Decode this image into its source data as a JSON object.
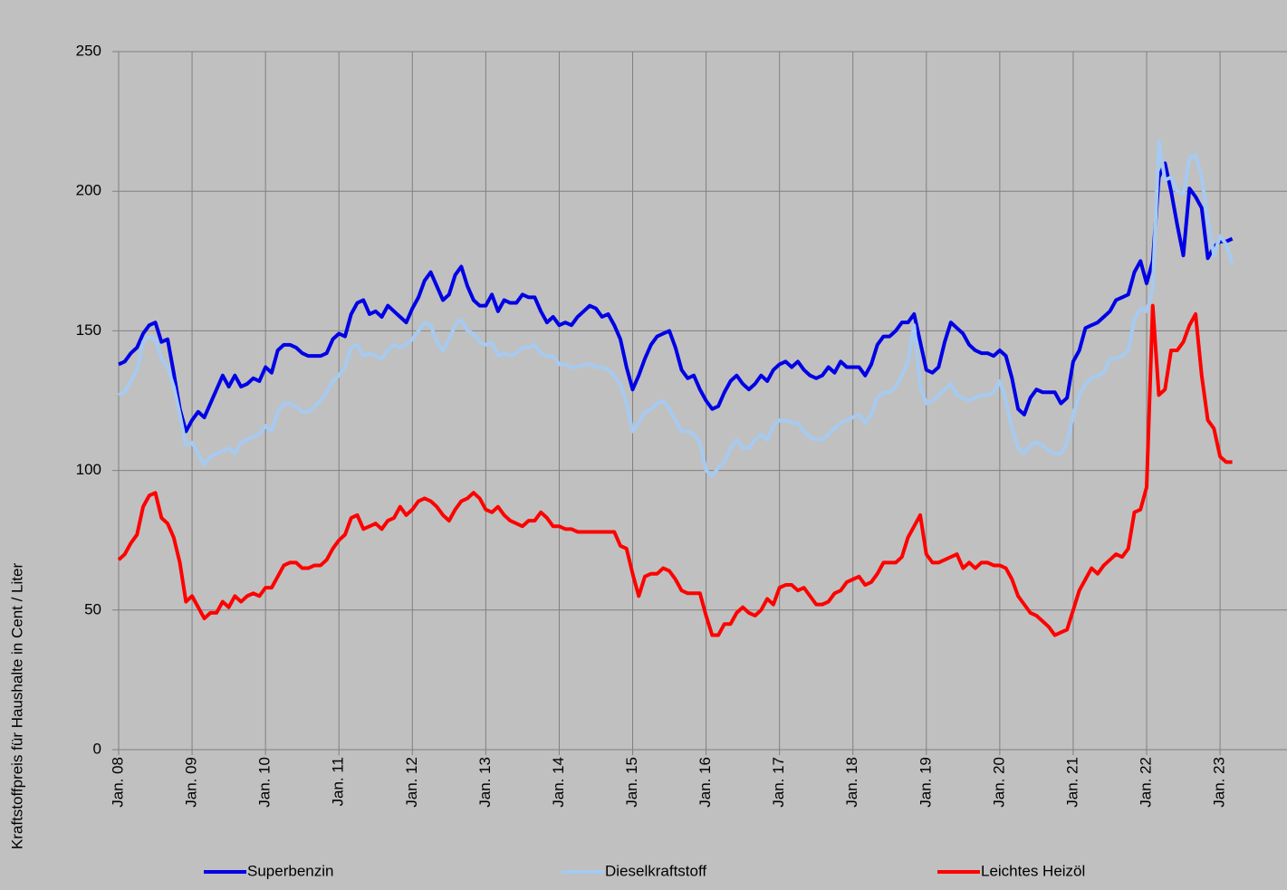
{
  "chart_data": {
    "type": "line",
    "y_label": "Kraftstoffpreis für Haushalte in Cent / Liter",
    "categories": [
      "Jan. 08",
      null,
      null,
      null,
      null,
      null,
      null,
      null,
      null,
      null,
      null,
      null,
      "Jan. 09",
      null,
      null,
      null,
      null,
      null,
      null,
      null,
      null,
      null,
      null,
      null,
      "Jan. 10",
      null,
      null,
      null,
      null,
      null,
      null,
      null,
      null,
      null,
      null,
      null,
      "Jan. 11",
      null,
      null,
      null,
      null,
      null,
      null,
      null,
      null,
      null,
      null,
      null,
      "Jan. 12",
      null,
      null,
      null,
      null,
      null,
      null,
      null,
      null,
      null,
      null,
      null,
      "Jan. 13",
      null,
      null,
      null,
      null,
      null,
      null,
      null,
      null,
      null,
      null,
      null,
      "Jan. 14",
      null,
      null,
      null,
      null,
      null,
      null,
      null,
      null,
      null,
      null,
      null,
      "Jan. 15",
      null,
      null,
      null,
      null,
      null,
      null,
      null,
      null,
      null,
      null,
      null,
      "Jan. 16",
      null,
      null,
      null,
      null,
      null,
      null,
      null,
      null,
      null,
      null,
      null,
      "Jan. 17",
      null,
      null,
      null,
      null,
      null,
      null,
      null,
      null,
      null,
      null,
      null,
      "Jan. 18",
      null,
      null,
      null,
      null,
      null,
      null,
      null,
      null,
      null,
      null,
      null,
      "Jan. 19",
      null,
      null,
      null,
      null,
      null,
      null,
      null,
      null,
      null,
      null,
      null,
      "Jan. 20",
      null,
      null,
      null,
      null,
      null,
      null,
      null,
      null,
      null,
      null,
      null,
      "Jan. 21",
      null,
      null,
      null,
      null,
      null,
      null,
      null,
      null,
      null,
      null,
      null,
      "Jan. 22",
      null,
      null,
      null,
      null,
      null,
      null,
      null,
      null,
      null,
      null,
      null,
      "Jan. 23",
      null,
      null
    ],
    "series": [
      {
        "name": "Superbenzin",
        "color": "#0000e6",
        "values": [
          138,
          139,
          142,
          144,
          149,
          152,
          153,
          146,
          147,
          135,
          122,
          114,
          118,
          121,
          119,
          124,
          129,
          134,
          130,
          134,
          130,
          131,
          133,
          132,
          137,
          135,
          143,
          145,
          145,
          144,
          142,
          141,
          141,
          141,
          142,
          147,
          149,
          148,
          156,
          160,
          161,
          156,
          157,
          155,
          159,
          157,
          155,
          153,
          158,
          162,
          168,
          171,
          166,
          161,
          163,
          170,
          173,
          166,
          161,
          159,
          159,
          163,
          157,
          161,
          160,
          160,
          163,
          162,
          162,
          157,
          153,
          155,
          152,
          153,
          152,
          155,
          157,
          159,
          158,
          155,
          156,
          152,
          147,
          137,
          129,
          134,
          140,
          145,
          148,
          149,
          150,
          144,
          136,
          133,
          134,
          129,
          125,
          122,
          123,
          128,
          132,
          134,
          131,
          129,
          131,
          134,
          132,
          136,
          138,
          139,
          137,
          139,
          136,
          134,
          133,
          134,
          137,
          135,
          139,
          137,
          137,
          137,
          134,
          138,
          145,
          148,
          148,
          150,
          153,
          153,
          156,
          146,
          136,
          135,
          137,
          146,
          153,
          151,
          149,
          145,
          143,
          142,
          142,
          141,
          143,
          141,
          133,
          122,
          120,
          126,
          129,
          128,
          128,
          128,
          124,
          126,
          139,
          143,
          151,
          152,
          153,
          155,
          157,
          161,
          162,
          163,
          171,
          175,
          167,
          175,
          205,
          210,
          200,
          188,
          177,
          201,
          198,
          194,
          176,
          180,
          182,
          182,
          183
        ]
      },
      {
        "name": "Dieselkraftstoff",
        "color": "#a6caf0",
        "values": [
          127,
          128,
          132,
          136,
          146,
          148,
          147,
          140,
          137,
          130,
          120,
          109,
          110,
          106,
          102,
          105,
          106,
          107,
          108,
          106,
          110,
          111,
          112,
          113,
          116,
          114,
          121,
          124,
          124,
          123,
          121,
          121,
          123,
          125,
          128,
          132,
          134,
          137,
          144,
          145,
          141,
          142,
          141,
          140,
          143,
          145,
          144,
          145,
          147,
          150,
          153,
          152,
          146,
          143,
          147,
          152,
          154,
          150,
          149,
          146,
          145,
          146,
          141,
          142,
          141,
          142,
          144,
          144,
          145,
          142,
          141,
          141,
          138,
          138,
          137,
          137,
          138,
          138,
          137,
          137,
          136,
          134,
          131,
          124,
          114,
          117,
          121,
          122,
          124,
          125,
          122,
          118,
          114,
          114,
          113,
          110,
          100,
          98,
          101,
          103,
          108,
          111,
          108,
          108,
          111,
          113,
          111,
          116,
          118,
          118,
          117,
          117,
          114,
          112,
          111,
          111,
          113,
          115,
          117,
          118,
          119,
          120,
          117,
          120,
          126,
          128,
          128,
          130,
          134,
          139,
          152,
          130,
          124,
          125,
          127,
          129,
          131,
          127,
          126,
          125,
          126,
          127,
          127,
          128,
          132,
          125,
          115,
          108,
          106,
          109,
          110,
          109,
          107,
          106,
          106,
          110,
          120,
          127,
          131,
          133,
          134,
          135,
          140,
          140,
          141,
          143,
          154,
          158,
          157,
          165,
          218,
          204,
          205,
          200,
          199,
          212,
          213,
          205,
          190,
          177,
          184,
          181,
          174
        ]
      },
      {
        "name": "Leichtes Heizöl",
        "color": "#ff0000",
        "values": [
          68,
          70,
          74,
          77,
          87,
          91,
          92,
          83,
          81,
          76,
          67,
          53,
          55,
          51,
          47,
          49,
          49,
          53,
          51,
          55,
          53,
          55,
          56,
          55,
          58,
          58,
          62,
          66,
          67,
          67,
          65,
          65,
          66,
          66,
          68,
          72,
          75,
          77,
          83,
          84,
          79,
          80,
          81,
          79,
          82,
          83,
          87,
          84,
          86,
          89,
          90,
          89,
          87,
          84,
          82,
          86,
          89,
          90,
          92,
          90,
          86,
          85,
          87,
          84,
          82,
          81,
          80,
          82,
          82,
          85,
          83,
          80,
          80,
          79,
          79,
          78,
          78,
          78,
          78,
          78,
          78,
          78,
          73,
          72,
          63,
          55,
          62,
          63,
          63,
          65,
          64,
          61,
          57,
          56,
          56,
          56,
          48,
          41,
          41,
          45,
          45,
          49,
          51,
          49,
          48,
          50,
          54,
          52,
          58,
          59,
          59,
          57,
          58,
          55,
          52,
          52,
          53,
          56,
          57,
          60,
          61,
          62,
          59,
          60,
          63,
          67,
          67,
          67,
          69,
          76,
          80,
          84,
          70,
          67,
          67,
          68,
          69,
          70,
          65,
          67,
          65,
          67,
          67,
          66,
          66,
          65,
          61,
          55,
          52,
          49,
          48,
          46,
          44,
          41,
          42,
          43,
          50,
          57,
          61,
          65,
          63,
          66,
          68,
          70,
          69,
          72,
          85,
          86,
          94,
          159,
          127,
          129,
          143,
          143,
          146,
          152,
          156,
          134,
          118,
          115,
          105,
          103,
          103
        ]
      }
    ],
    "ylim": [
      0,
      250
    ],
    "yticks": [
      0,
      50,
      100,
      150,
      200,
      250
    ],
    "grid": true
  }
}
